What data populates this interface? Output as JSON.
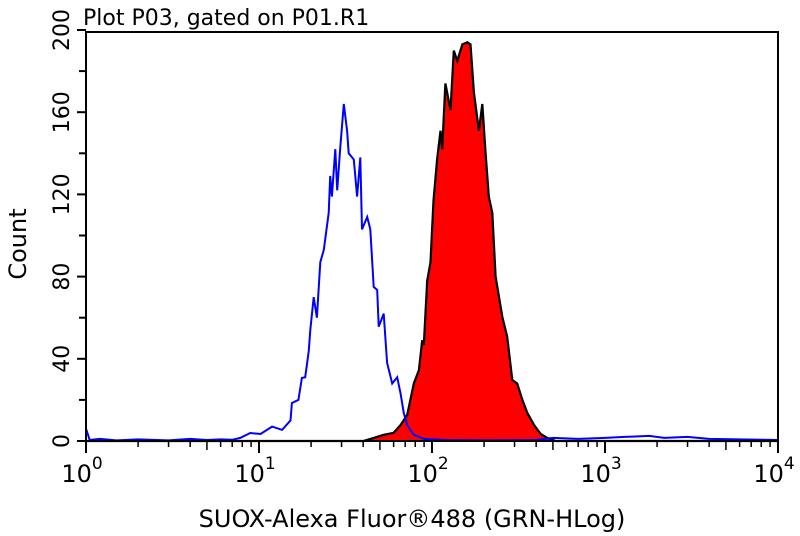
{
  "chart_data": {
    "type": "area",
    "title": "Plot P03, gated on P01.R1",
    "xlabel": "SUOX-Alexa Fluor®488 (GRN-HLog)",
    "ylabel": "Count",
    "xscale": "log",
    "xlim": [
      1,
      10000
    ],
    "ylim": [
      0,
      200
    ],
    "grid": false,
    "x_ticks": [
      {
        "base": "10",
        "exp": "0",
        "value": 1
      },
      {
        "base": "10",
        "exp": "1",
        "value": 10
      },
      {
        "base": "10",
        "exp": "2",
        "value": 100
      },
      {
        "base": "10",
        "exp": "3",
        "value": 1000
      },
      {
        "base": "10",
        "exp": "4",
        "value": 10000
      }
    ],
    "y_ticks": [
      "0",
      "40",
      "80",
      "120",
      "160",
      "200"
    ],
    "series": [
      {
        "style": "outline",
        "color": "#0000ff",
        "points": [
          [
            1,
            6
          ],
          [
            1.05,
            0.5
          ],
          [
            1.2,
            1
          ],
          [
            1.5,
            0.3
          ],
          [
            2,
            0.8
          ],
          [
            3,
            0.3
          ],
          [
            4,
            1
          ],
          [
            5,
            0.5
          ],
          [
            6,
            0.8
          ],
          [
            7,
            0.6
          ],
          [
            7.8,
            1.5
          ],
          [
            8.9,
            3.9
          ],
          [
            10.2,
            3.4
          ],
          [
            11.9,
            7
          ],
          [
            13.6,
            5.4
          ],
          [
            15.2,
            10
          ],
          [
            15.5,
            18.5
          ],
          [
            16.9,
            20
          ],
          [
            17.7,
            30.7
          ],
          [
            18.5,
            31
          ],
          [
            19.4,
            44
          ],
          [
            19.8,
            54
          ],
          [
            20.7,
            70
          ],
          [
            21.6,
            60
          ],
          [
            22.6,
            87
          ],
          [
            23.7,
            93
          ],
          [
            25.3,
            111
          ],
          [
            25.8,
            129
          ],
          [
            26.4,
            119
          ],
          [
            27.6,
            142
          ],
          [
            28.3,
            122
          ],
          [
            29.5,
            143
          ],
          [
            30.9,
            164
          ],
          [
            32.3,
            151
          ],
          [
            33,
            140
          ],
          [
            35.3,
            137
          ],
          [
            36.9,
            119
          ],
          [
            38.5,
            138
          ],
          [
            39.4,
            103
          ],
          [
            42.2,
            109
          ],
          [
            44,
            103
          ],
          [
            46,
            75
          ],
          [
            48.2,
            73.5
          ],
          [
            49.2,
            55.6
          ],
          [
            52.6,
            62
          ],
          [
            55,
            38
          ],
          [
            58.9,
            28
          ],
          [
            62.9,
            31
          ],
          [
            65.8,
            23
          ],
          [
            68.7,
            13.6
          ],
          [
            71.9,
            7.8
          ],
          [
            78.5,
            3
          ],
          [
            90,
            1
          ],
          [
            120,
            0.5
          ],
          [
            200,
            0.3
          ],
          [
            400,
            0.5
          ],
          [
            500,
            1.5
          ],
          [
            700,
            1
          ],
          [
            1000,
            1.5
          ],
          [
            1300,
            2
          ],
          [
            1800,
            2.5
          ],
          [
            2200,
            1.5
          ],
          [
            3000,
            2
          ],
          [
            4000,
            1
          ],
          [
            6000,
            0.8
          ],
          [
            10000,
            0.5
          ]
        ]
      },
      {
        "style": "filled",
        "color": "#ff0000",
        "line_color": "#000000",
        "points": [
          [
            1,
            0
          ],
          [
            40,
            0
          ],
          [
            46,
            1.5
          ],
          [
            52.6,
            3
          ],
          [
            60,
            4
          ],
          [
            65.8,
            7.8
          ],
          [
            71.9,
            12.7
          ],
          [
            78.5,
            28
          ],
          [
            84,
            34.5
          ],
          [
            87.8,
            49
          ],
          [
            89.7,
            46.7
          ],
          [
            93.8,
            78
          ],
          [
            98,
            87
          ],
          [
            102,
            117
          ],
          [
            107,
            137
          ],
          [
            112,
            151
          ],
          [
            114.5,
            142
          ],
          [
            119.6,
            174
          ],
          [
            128,
            161
          ],
          [
            133.7,
            190
          ],
          [
            140,
            185
          ],
          [
            149.6,
            193
          ],
          [
            160,
            194
          ],
          [
            167,
            193
          ],
          [
            174.6,
            169.6
          ],
          [
            186.7,
            151
          ],
          [
            195.4,
            164
          ],
          [
            204,
            140
          ],
          [
            213,
            119
          ],
          [
            223,
            111
          ],
          [
            233,
            80
          ],
          [
            255,
            60.5
          ],
          [
            272,
            50.7
          ],
          [
            291,
            29.7
          ],
          [
            311,
            28
          ],
          [
            333,
            20
          ],
          [
            356,
            13.6
          ],
          [
            389,
            7.8
          ],
          [
            425,
            3.4
          ],
          [
            464,
            1.5
          ],
          [
            520,
            0
          ],
          [
            10000,
            0
          ]
        ]
      }
    ]
  }
}
